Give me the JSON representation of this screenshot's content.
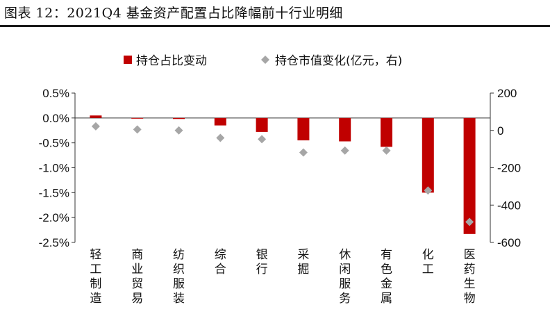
{
  "figure_title": "图表 12：2021Q4 基金资产配置占比降幅前十行业明细",
  "colors": {
    "bar": "#c00000",
    "marker": "#a6a6a6",
    "axis": "#333333"
  },
  "chart_data": {
    "type": "bar",
    "categories": [
      "轻工制造",
      "商业贸易",
      "纺织服装",
      "综合",
      "银行",
      "采掘",
      "休闲服务",
      "有色金属",
      "化工",
      "医药生物"
    ],
    "series": [
      {
        "name": "持仓占比变动",
        "type": "bar",
        "axis": "left",
        "values": [
          0.05,
          0.0,
          -0.02,
          -0.15,
          -0.28,
          -0.45,
          -0.47,
          -0.58,
          -1.5,
          -2.33
        ]
      },
      {
        "name": "持仓市值变化(亿元，右)",
        "type": "scatter",
        "axis": "right",
        "values": [
          22,
          5,
          0,
          -40,
          -47,
          -118,
          -108,
          -108,
          -322,
          -490
        ]
      }
    ],
    "y_left": {
      "ylim": [
        -2.5,
        0.5
      ],
      "ticks": [
        0.5,
        0.0,
        -0.5,
        -1.0,
        -1.5,
        -2.0,
        -2.5
      ],
      "tick_labels": [
        "0.5%",
        "0.0%",
        "-0.5%",
        "-1.0%",
        "-1.5%",
        "-2.0%",
        "-2.5%"
      ]
    },
    "y_right": {
      "ylim": [
        -600,
        200
      ],
      "ticks": [
        200,
        0,
        -200,
        -400,
        -600
      ],
      "tick_labels": [
        "200",
        "0",
        "-200",
        "-400",
        "-600"
      ]
    },
    "grid": false,
    "legend_position": "top-center"
  }
}
